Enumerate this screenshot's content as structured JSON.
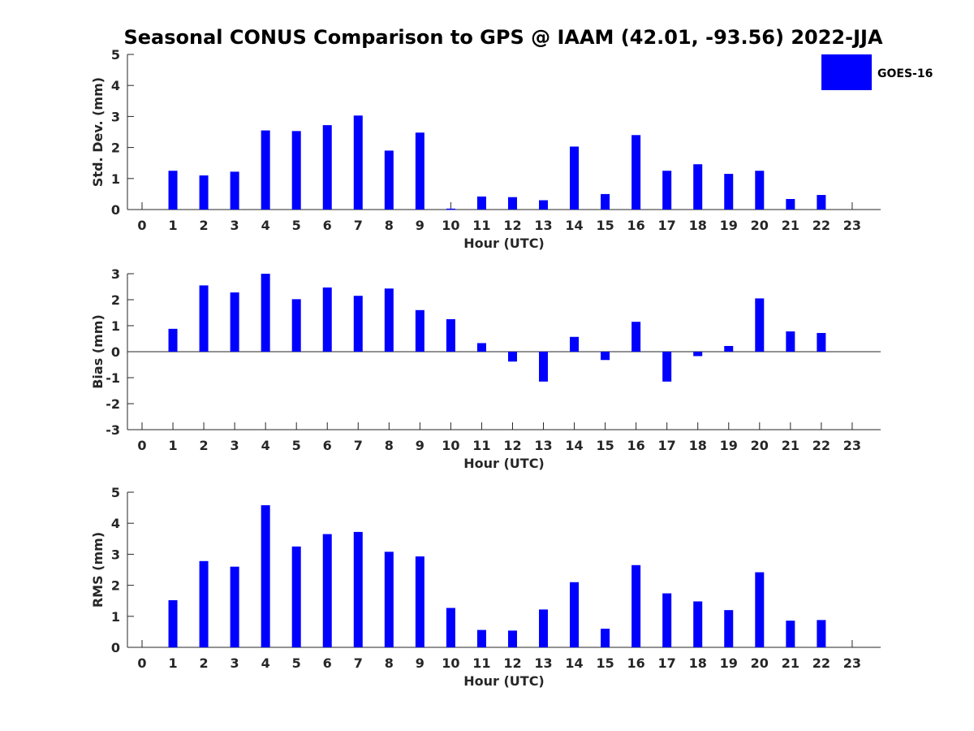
{
  "chart_data": [
    {
      "type": "bar",
      "title": "Seasonal CONUS Comparison to GPS @ IAAM (42.01, -93.56) 2022-JJA",
      "xlabel": "Hour (UTC)",
      "ylabel": "Std. Dev. (mm)",
      "ylim": [
        0,
        5
      ],
      "yticks": [
        0,
        1,
        2,
        3,
        4,
        5
      ],
      "categories": [
        "0",
        "1",
        "2",
        "3",
        "4",
        "5",
        "6",
        "7",
        "8",
        "9",
        "10",
        "11",
        "12",
        "13",
        "14",
        "15",
        "16",
        "17",
        "18",
        "19",
        "20",
        "21",
        "22",
        "23"
      ],
      "series": [
        {
          "name": "GOES-16",
          "color": "#0000ff",
          "values": [
            0,
            1.25,
            1.1,
            1.22,
            2.55,
            2.53,
            2.72,
            3.03,
            1.9,
            2.48,
            0.03,
            0.42,
            0.4,
            0.3,
            2.03,
            0.5,
            2.4,
            1.25,
            1.46,
            1.15,
            1.25,
            0.34,
            0.47,
            0
          ]
        }
      ],
      "legend": {
        "position": "top-right",
        "label": "GOES-16",
        "color": "#0000ff"
      }
    },
    {
      "type": "bar",
      "xlabel": "Hour (UTC)",
      "ylabel": "Bias (mm)",
      "ylim": [
        -3,
        3
      ],
      "yticks": [
        -3,
        -2,
        -1,
        0,
        1,
        2,
        3
      ],
      "categories": [
        "0",
        "1",
        "2",
        "3",
        "4",
        "5",
        "6",
        "7",
        "8",
        "9",
        "10",
        "11",
        "12",
        "13",
        "14",
        "15",
        "16",
        "17",
        "18",
        "19",
        "20",
        "21",
        "22",
        "23"
      ],
      "series": [
        {
          "name": "GOES-16",
          "color": "#0000ff",
          "values": [
            0,
            0.88,
            2.55,
            2.28,
            3.0,
            2.02,
            2.47,
            2.15,
            2.43,
            1.6,
            1.25,
            0.33,
            -0.38,
            -1.15,
            0.57,
            -0.32,
            1.15,
            -1.15,
            -0.17,
            0.22,
            2.05,
            0.78,
            0.72,
            0
          ]
        }
      ],
      "zero_line": true
    },
    {
      "type": "bar",
      "xlabel": "Hour (UTC)",
      "ylabel": "RMS (mm)",
      "ylim": [
        0,
        5
      ],
      "yticks": [
        0,
        1,
        2,
        3,
        4,
        5
      ],
      "categories": [
        "0",
        "1",
        "2",
        "3",
        "4",
        "5",
        "6",
        "7",
        "8",
        "9",
        "10",
        "11",
        "12",
        "13",
        "14",
        "15",
        "16",
        "17",
        "18",
        "19",
        "20",
        "21",
        "22",
        "23"
      ],
      "series": [
        {
          "name": "GOES-16",
          "color": "#0000ff",
          "values": [
            0,
            1.52,
            2.78,
            2.6,
            4.58,
            3.25,
            3.65,
            3.72,
            3.08,
            2.93,
            1.27,
            0.56,
            0.54,
            1.22,
            2.1,
            0.6,
            2.65,
            1.74,
            1.48,
            1.2,
            2.42,
            0.86,
            0.88,
            0
          ]
        }
      ]
    }
  ]
}
